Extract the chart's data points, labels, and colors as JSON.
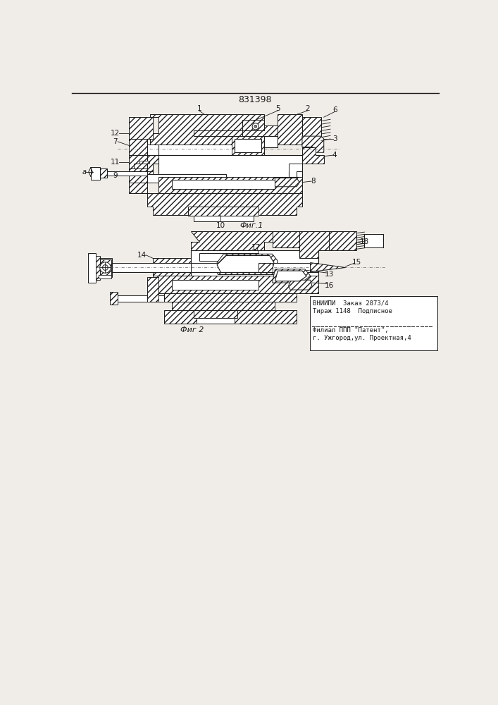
{
  "patent_number": "831398",
  "fig1_caption": "Фиг.1",
  "fig2_caption": "Фиг 2",
  "bottom_text_line1": "ВНИИПИ  Заказ 2873/4",
  "bottom_text_line2": "Тираж 1148  Подписное",
  "bottom_text_line3": "Филиал ППП \"Патент\",",
  "bottom_text_line4": "г. Ужгород,ул. Проектная,4",
  "bg_color": "#f0ede8",
  "line_color": "#1a1a1a",
  "hatch_color": "#2a2a2a",
  "white_fill": "#ffffff"
}
